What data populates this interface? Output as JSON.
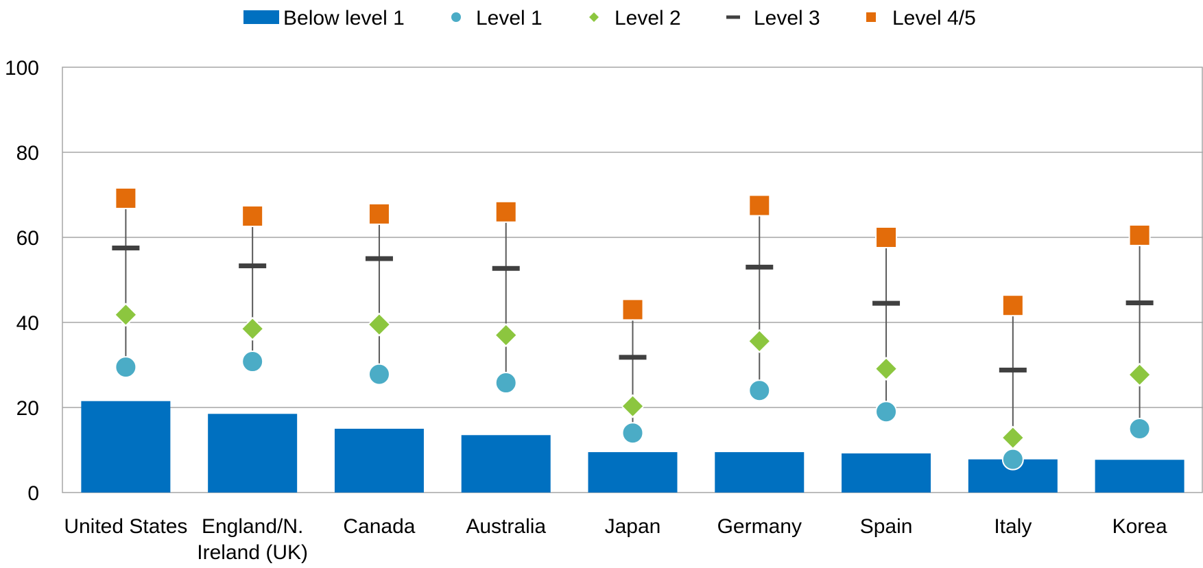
{
  "chart_data": {
    "type": "bar",
    "categories": [
      [
        "United States"
      ],
      [
        "England/N.",
        "Ireland (UK)"
      ],
      [
        "Canada"
      ],
      [
        "Australia"
      ],
      [
        "Japan"
      ],
      [
        "Germany"
      ],
      [
        "Spain"
      ],
      [
        "Italy"
      ],
      [
        "Korea"
      ]
    ],
    "ylim": [
      0,
      100
    ],
    "yticks": [
      0,
      20,
      40,
      60,
      80,
      100
    ],
    "grid": true,
    "legend_position": "top",
    "series": [
      {
        "name": "Below level 1",
        "mark": "bar",
        "color": "#0070C0",
        "values": [
          21.5,
          18.5,
          15,
          13.5,
          9.5,
          9.5,
          9.2,
          7.8,
          7.7
        ]
      },
      {
        "name": "Level 1",
        "mark": "circle",
        "color": "#4BACC6",
        "values": [
          29.5,
          30.8,
          27.8,
          25.8,
          14,
          24,
          19,
          7.8,
          15
        ]
      },
      {
        "name": "Level 2",
        "mark": "diamond",
        "color": "#8CC63F",
        "values": [
          41.8,
          38.5,
          39.5,
          37,
          20.3,
          35.6,
          29.1,
          12.9,
          27.7
        ]
      },
      {
        "name": "Level 3",
        "mark": "dash",
        "color": "#404040",
        "values": [
          57.5,
          53.3,
          55,
          52.7,
          31.8,
          53,
          44.5,
          28.8,
          44.6
        ]
      },
      {
        "name": "Level 4/5",
        "mark": "square",
        "color": "#E36C0A",
        "values": [
          69.2,
          65,
          65.5,
          66,
          43,
          67.5,
          60,
          44,
          60.5
        ]
      }
    ]
  }
}
